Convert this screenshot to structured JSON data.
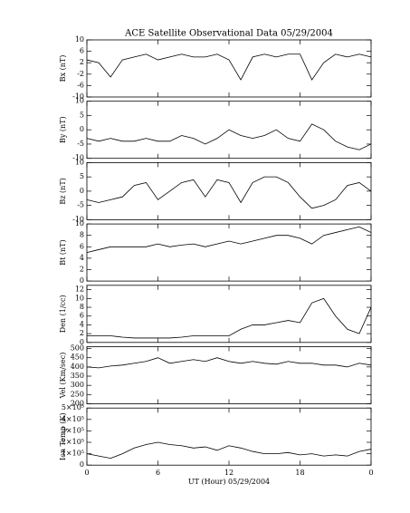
{
  "chart_data": [
    {
      "type": "line",
      "title": "ACE Satellite Observational Data   05/29/2004",
      "ylabel": "Bx (nT)",
      "color": "#000000",
      "x": [
        0,
        1,
        2,
        3,
        4,
        5,
        6,
        7,
        8,
        9,
        10,
        11,
        12,
        13,
        14,
        15,
        16,
        17,
        18,
        19,
        20,
        21,
        22,
        23,
        24
      ],
      "values": [
        3,
        2,
        -3,
        3,
        4,
        5,
        3,
        4,
        5,
        4,
        4,
        5,
        3,
        -4,
        4,
        5,
        4,
        5,
        5,
        -4,
        2,
        5,
        4,
        5,
        4
      ],
      "xlim": [
        0,
        24
      ],
      "ylim": [
        -10,
        10
      ],
      "yticks": [
        -10,
        -6,
        -2,
        2,
        6,
        10
      ]
    },
    {
      "type": "line",
      "ylabel": "By (nT)",
      "color": "#000000",
      "x": [
        0,
        1,
        2,
        3,
        4,
        5,
        6,
        7,
        8,
        9,
        10,
        11,
        12,
        13,
        14,
        15,
        16,
        17,
        18,
        19,
        20,
        21,
        22,
        23,
        24
      ],
      "values": [
        -3,
        -4,
        -3,
        -4,
        -4,
        -3,
        -4,
        -4,
        -2,
        -3,
        -5,
        -3,
        0,
        -2,
        -3,
        -2,
        0,
        -3,
        -4,
        2,
        0,
        -4,
        -6,
        -7,
        -5
      ],
      "xlim": [
        0,
        24
      ],
      "ylim": [
        -10,
        10
      ],
      "yticks": [
        -10,
        -5,
        0,
        5,
        10
      ]
    },
    {
      "type": "line",
      "ylabel": "Bz (nT)",
      "color": "#000000",
      "x": [
        0,
        1,
        2,
        3,
        4,
        5,
        6,
        7,
        8,
        9,
        10,
        11,
        12,
        13,
        14,
        15,
        16,
        17,
        18,
        19,
        20,
        21,
        22,
        23,
        24
      ],
      "values": [
        -3,
        -4,
        -3,
        -2,
        2,
        3,
        -3,
        0,
        3,
        4,
        -2,
        4,
        3,
        -4,
        3,
        5,
        5,
        3,
        -2,
        -6,
        -5,
        -3,
        2,
        3,
        0
      ],
      "xlim": [
        0,
        24
      ],
      "ylim": [
        -10,
        10
      ],
      "yticks": [
        -10,
        -5,
        0,
        5,
        10
      ]
    },
    {
      "type": "line",
      "ylabel": "Bt (nT)",
      "color": "#000000",
      "x": [
        0,
        1,
        2,
        3,
        4,
        5,
        6,
        7,
        8,
        9,
        10,
        11,
        12,
        13,
        14,
        15,
        16,
        17,
        18,
        19,
        20,
        21,
        22,
        23,
        24
      ],
      "values": [
        5,
        5.5,
        6,
        6,
        6,
        6,
        6.5,
        6,
        6.3,
        6.5,
        6,
        6.5,
        7,
        6.5,
        7,
        7.5,
        8,
        8,
        7.5,
        6.5,
        8,
        8.5,
        9,
        9.5,
        8.5
      ],
      "xlim": [
        0,
        24
      ],
      "ylim": [
        0,
        10
      ],
      "yticks": [
        0,
        2,
        4,
        6,
        8,
        10
      ]
    },
    {
      "type": "line",
      "ylabel": "Den (1/cc)",
      "color": "#000000",
      "x": [
        0,
        1,
        2,
        3,
        4,
        5,
        6,
        7,
        8,
        9,
        10,
        11,
        12,
        13,
        14,
        15,
        16,
        17,
        18,
        19,
        20,
        21,
        22,
        23,
        24
      ],
      "values": [
        1.5,
        1.5,
        1.5,
        1.2,
        1,
        1,
        1,
        1,
        1.2,
        1.5,
        1.5,
        1.5,
        1.5,
        3,
        4,
        4,
        4.5,
        5,
        4.5,
        9,
        10,
        6,
        3,
        2,
        8
      ],
      "xlim": [
        0,
        24
      ],
      "ylim": [
        0,
        13
      ],
      "yticks": [
        0,
        2,
        4,
        6,
        8,
        10,
        12
      ]
    },
    {
      "type": "line",
      "ylabel": "Vel (Km/sec)",
      "color": "#000000",
      "x": [
        0,
        1,
        2,
        3,
        4,
        5,
        6,
        7,
        8,
        9,
        10,
        11,
        12,
        13,
        14,
        15,
        16,
        17,
        18,
        19,
        20,
        21,
        22,
        23,
        24
      ],
      "values": [
        400,
        395,
        405,
        410,
        420,
        430,
        450,
        420,
        430,
        440,
        430,
        450,
        430,
        420,
        430,
        420,
        415,
        430,
        420,
        420,
        410,
        410,
        400,
        420,
        410
      ],
      "xlim": [
        0,
        24
      ],
      "ylim": [
        200,
        510
      ],
      "yticks": [
        200,
        250,
        300,
        350,
        400,
        450,
        500
      ]
    },
    {
      "type": "line",
      "ylabel": "Ion Temp (K)",
      "xlabel": "UT (Hour)   05/29/2004",
      "color": "#000000",
      "x": [
        0,
        1,
        2,
        3,
        4,
        5,
        6,
        7,
        8,
        9,
        10,
        11,
        12,
        13,
        14,
        15,
        16,
        17,
        18,
        19,
        20,
        21,
        22,
        23,
        24
      ],
      "values": [
        100000,
        80000,
        60000,
        100000,
        150000,
        180000,
        200000,
        180000,
        170000,
        150000,
        160000,
        130000,
        170000,
        150000,
        120000,
        100000,
        100000,
        110000,
        90000,
        100000,
        80000,
        90000,
        80000,
        120000,
        140000
      ],
      "xlim": [
        0,
        24
      ],
      "ylim": [
        0,
        500000
      ],
      "yticks": [
        0,
        {
          "value": 100000,
          "label": "1×10⁵"
        },
        {
          "value": 200000,
          "label": "2×10⁵"
        },
        {
          "value": 300000,
          "label": "3×10⁵"
        },
        {
          "value": 400000,
          "label": "4×10⁵"
        },
        {
          "value": 500000,
          "label": "5×10⁵"
        }
      ],
      "xticks": [
        0,
        6,
        12,
        18,
        {
          "value": 24,
          "label": "0"
        }
      ]
    }
  ]
}
